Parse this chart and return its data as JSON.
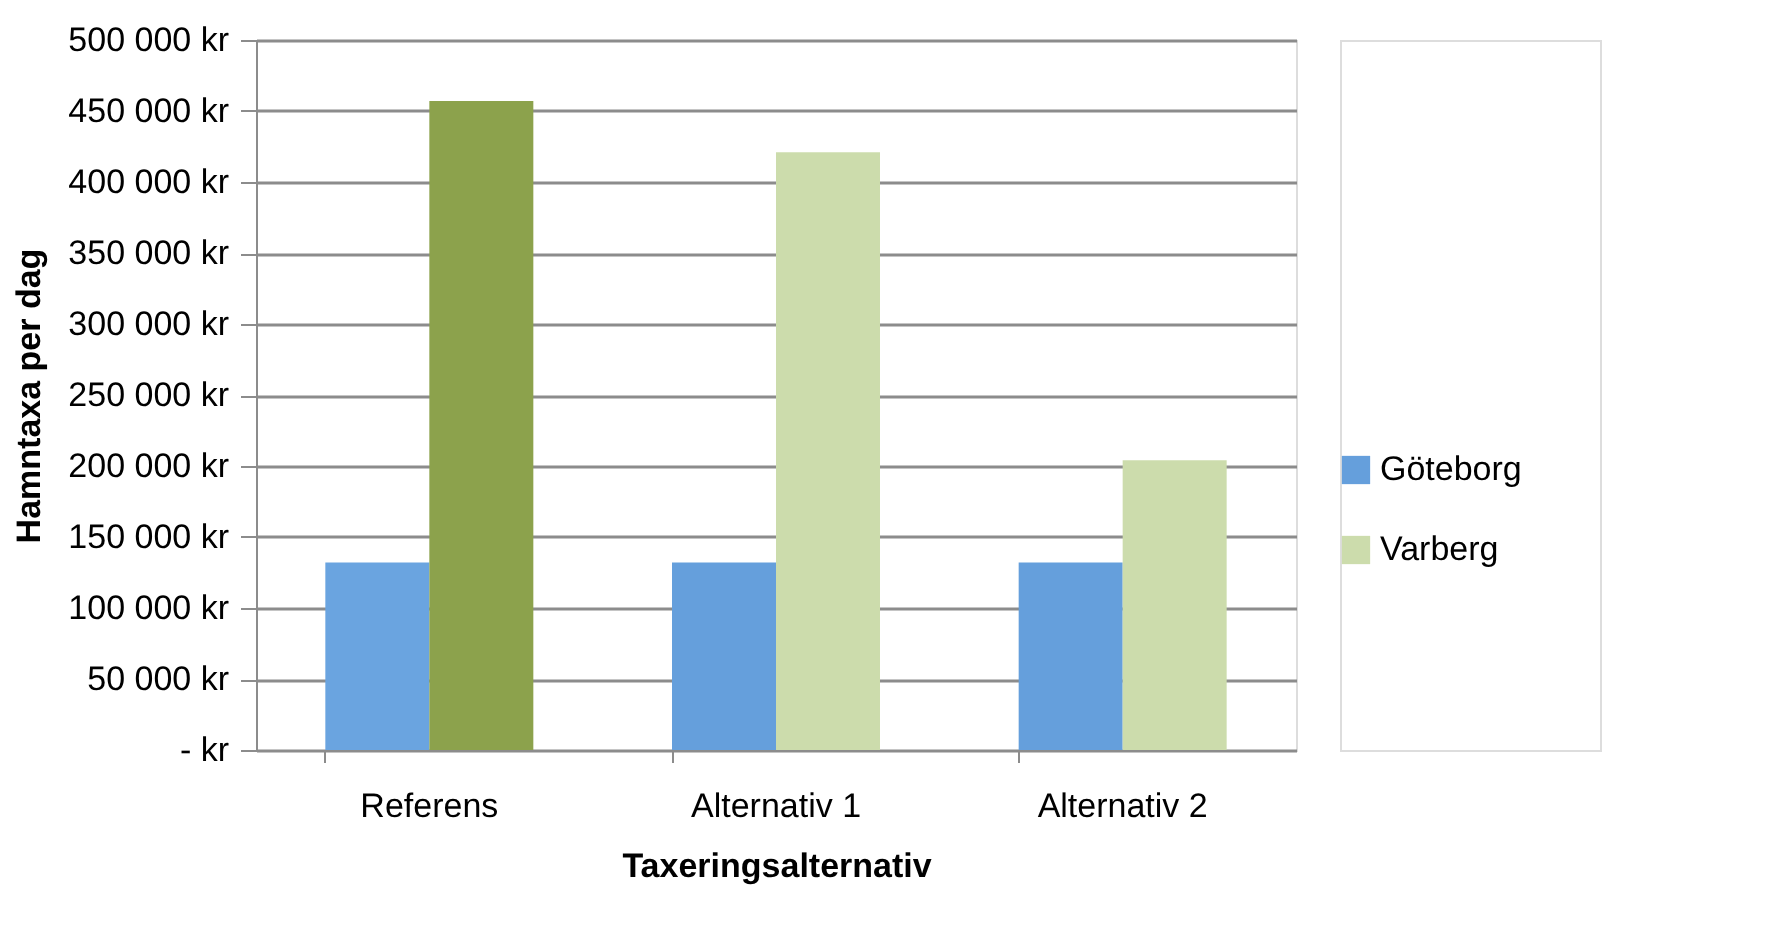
{
  "chart_data": {
    "type": "bar",
    "xlabel": "Taxeringsalternativ",
    "ylabel": "Hamntaxa per dag",
    "categories": [
      "Referens",
      "Alternativ 1",
      "Alternativ 2"
    ],
    "series": [
      {
        "name": "Göteborg",
        "color": "#659fdc",
        "colors": [
          "#6aa4e0",
          "#659fdc",
          "#659fdc"
        ],
        "values": [
          132000,
          132000,
          132000
        ]
      },
      {
        "name": "Varberg",
        "color": "#ccdcac",
        "colors": [
          "#8ca24c",
          "#ccdcac",
          "#ccdcac"
        ],
        "values": [
          457000,
          421000,
          204000
        ]
      }
    ],
    "ylim": [
      0,
      500000
    ],
    "yticks": [
      {
        "value": 0,
        "label": "-   kr"
      },
      {
        "value": 50000,
        "label": "50 000 kr"
      },
      {
        "value": 100000,
        "label": "100 000 kr"
      },
      {
        "value": 150000,
        "label": "150 000 kr"
      },
      {
        "value": 200000,
        "label": "200 000 kr"
      },
      {
        "value": 250000,
        "label": "250 000 kr"
      },
      {
        "value": 300000,
        "label": "300 000 kr"
      },
      {
        "value": 350000,
        "label": "350 000 kr"
      },
      {
        "value": 400000,
        "label": "400 000 kr"
      },
      {
        "value": 450000,
        "label": "450 000 kr"
      },
      {
        "value": 500000,
        "label": "500 000 kr"
      }
    ],
    "grid": "y",
    "legend": "right"
  }
}
